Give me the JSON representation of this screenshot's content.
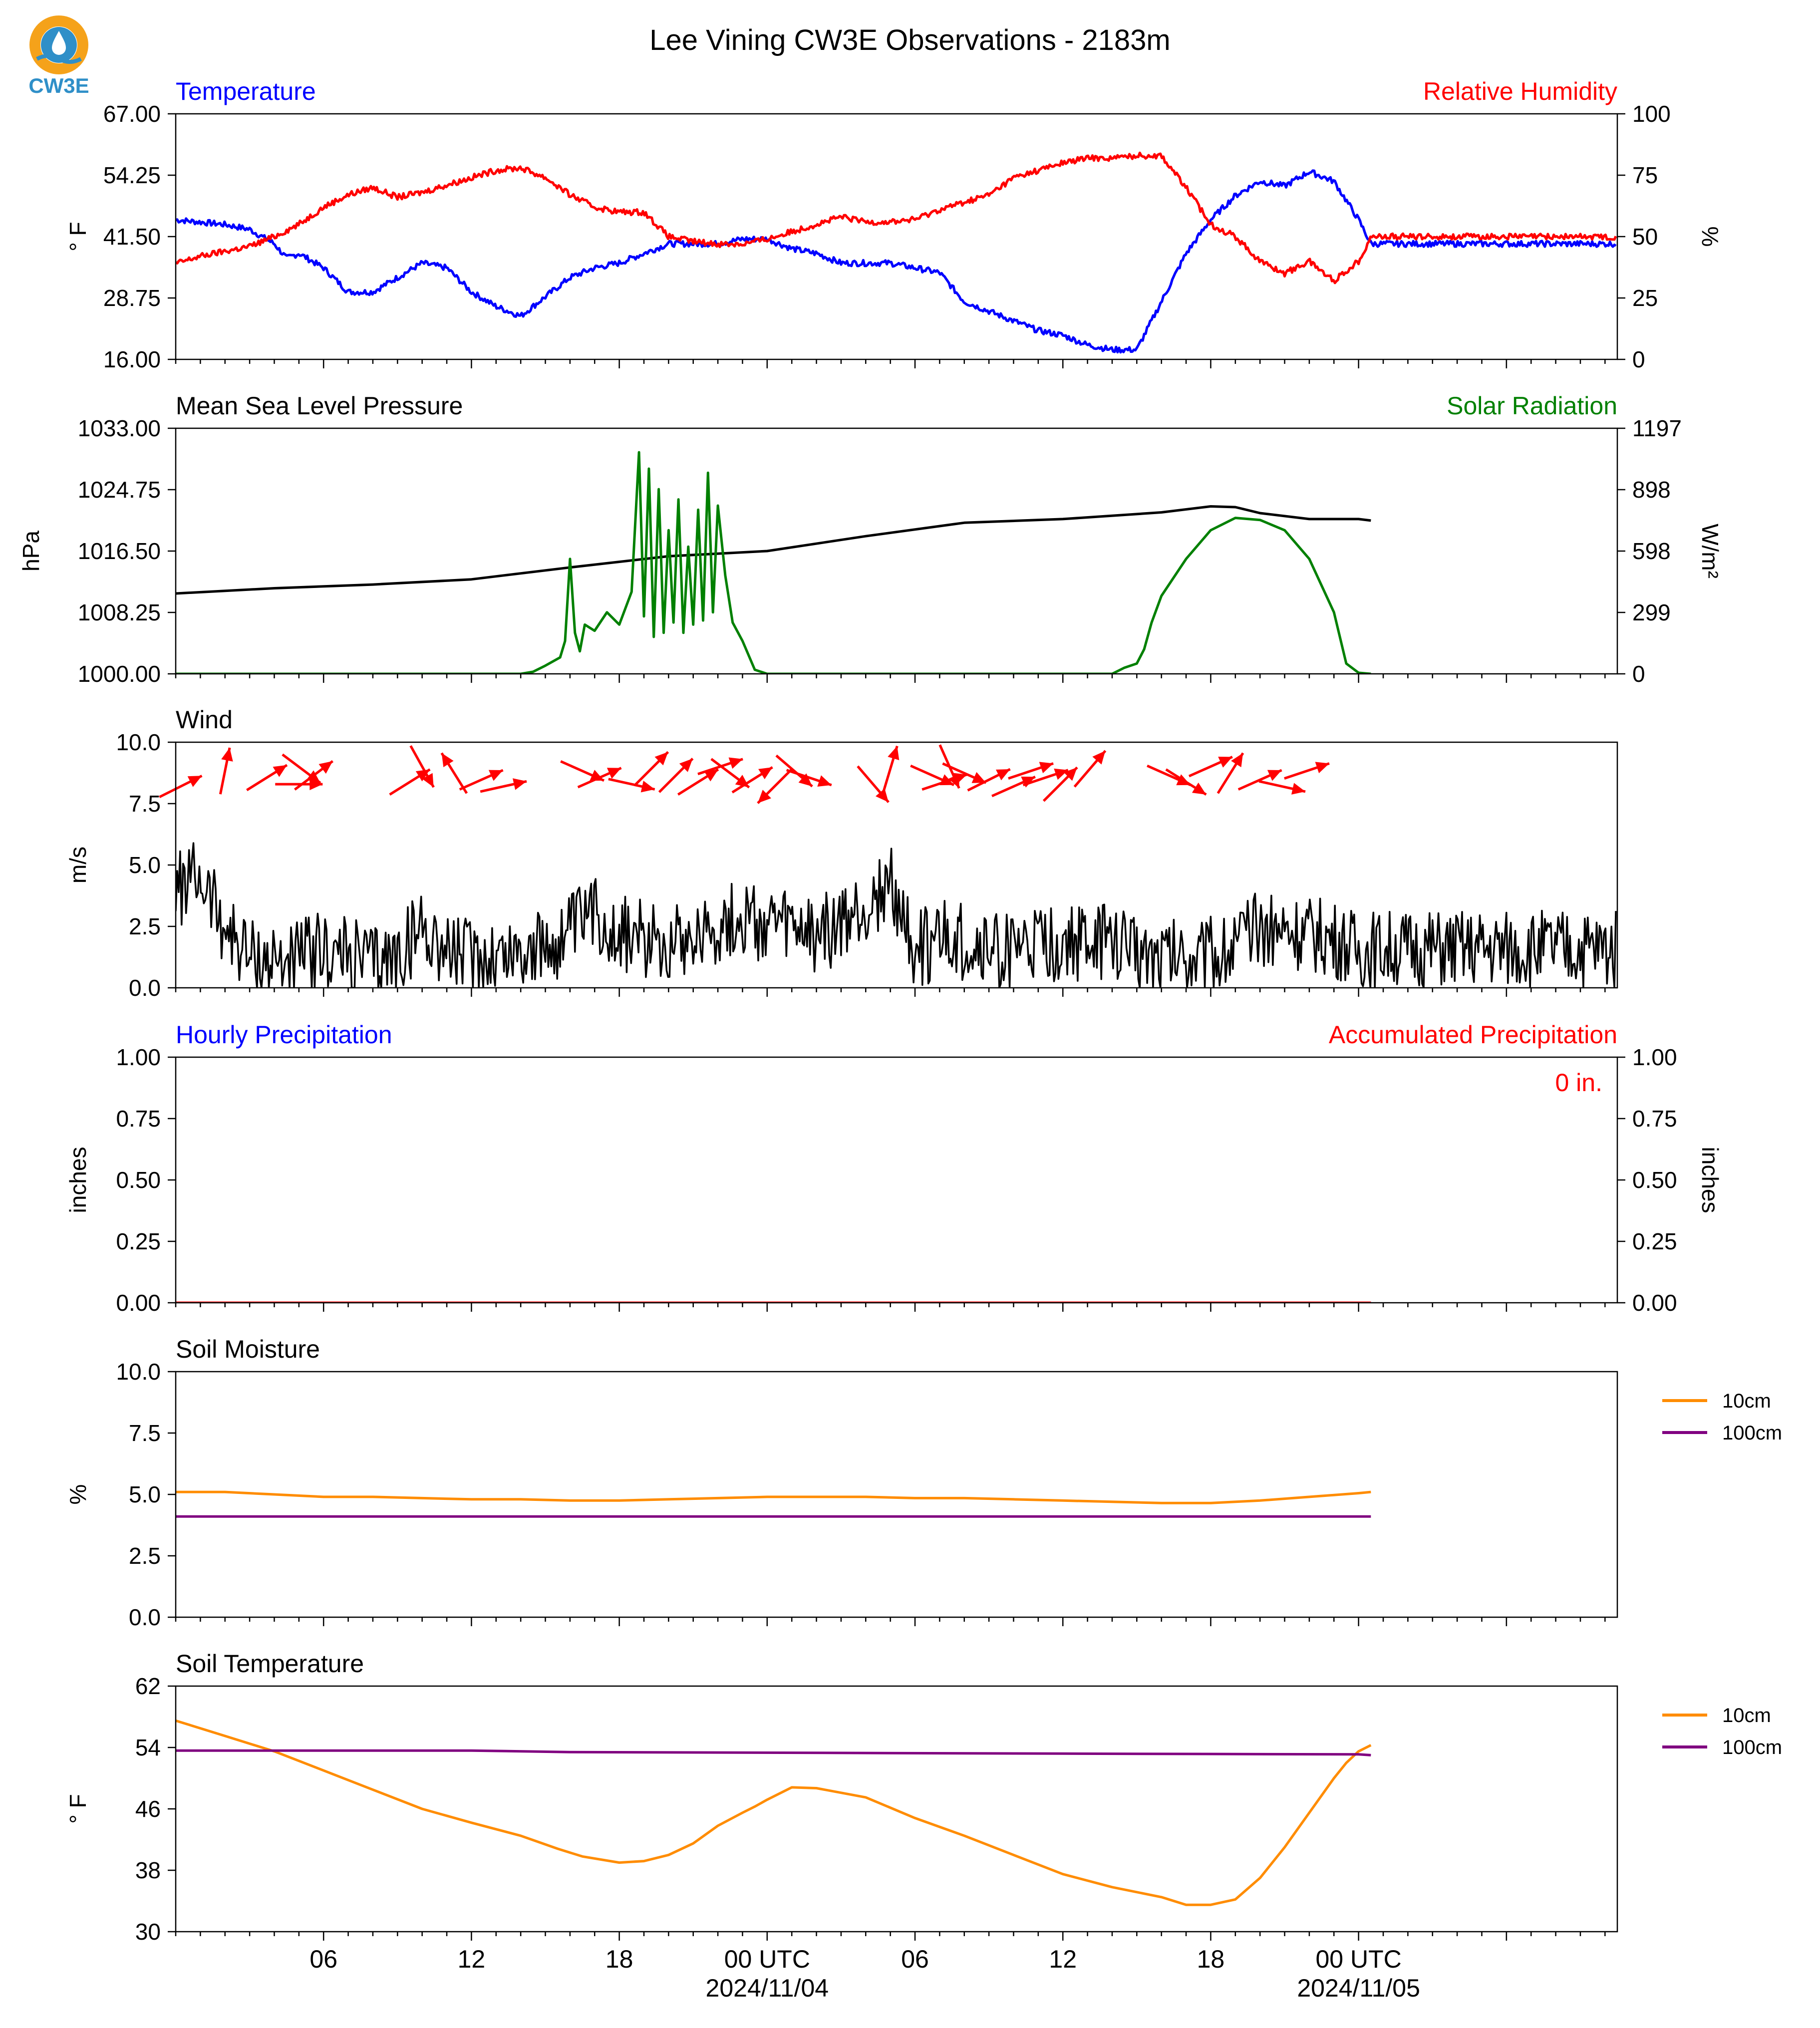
{
  "title": "Lee Vining CW3E Observations - 2183m",
  "logo": {
    "text": "CW3E",
    "colors": {
      "ring": "#f5a21a",
      "drop": "#2f8fc8",
      "text": "#2f8fc8"
    }
  },
  "x_axis": {
    "range_hours": [
      0,
      58.5
    ],
    "ticks": [
      {
        "hour": 6,
        "label": "06"
      },
      {
        "hour": 12,
        "label": "12"
      },
      {
        "hour": 18,
        "label": "18"
      },
      {
        "hour": 24,
        "label": "00 UTC",
        "sublabel": "2024/11/04"
      },
      {
        "hour": 30,
        "label": "06"
      },
      {
        "hour": 36,
        "label": "12"
      },
      {
        "hour": 42,
        "label": "18"
      },
      {
        "hour": 48,
        "label": "00 UTC",
        "sublabel": "2024/11/05"
      }
    ]
  },
  "chart_data": [
    {
      "type": "line",
      "panel": "temperature-rh",
      "title_left": "Temperature",
      "title_right": "Relative Humidity",
      "ylabel_left": "° F",
      "ylabel_right": "%",
      "ylim_left": [
        16,
        67
      ],
      "ylim_right": [
        0,
        100
      ],
      "yticks_left": [
        "16.00",
        "28.75",
        "41.50",
        "54.25",
        "67.00"
      ],
      "yticks_right": [
        "0",
        "25",
        "50",
        "75",
        "100"
      ],
      "series": [
        {
          "axis": "left",
          "color": "#0000ff",
          "x": [
            0,
            1,
            2,
            3,
            4,
            4.5,
            5,
            6,
            7,
            8,
            9,
            10,
            11,
            12,
            13,
            14,
            15,
            16,
            17,
            18,
            19,
            20,
            21,
            22,
            23,
            24,
            25,
            26,
            27,
            28,
            29,
            30,
            31,
            32,
            33,
            34,
            35,
            36,
            37,
            38,
            39,
            40,
            41,
            42,
            43,
            44,
            45,
            46,
            47,
            48,
            48.5
          ],
          "y": [
            45,
            44.5,
            44,
            43,
            40,
            37,
            38,
            35,
            30,
            30,
            33,
            36,
            35,
            30,
            27,
            25,
            29,
            33,
            35,
            36,
            38,
            40,
            40,
            40,
            41,
            41,
            39,
            38,
            36,
            36,
            36,
            35,
            34,
            28,
            26,
            24,
            22,
            21,
            19,
            18,
            18,
            28,
            38,
            45,
            50,
            53,
            52,
            55,
            53,
            45,
            40
          ]
        },
        {
          "axis": "right",
          "color": "#ff0000",
          "x": [
            0,
            1,
            2,
            3,
            4,
            5,
            6,
            7,
            8,
            9,
            10,
            11,
            12,
            13,
            14,
            15,
            16,
            17,
            18,
            19,
            20,
            21,
            22,
            23,
            24,
            25,
            26,
            27,
            28,
            29,
            30,
            31,
            32,
            33,
            34,
            35,
            36,
            37,
            38,
            39,
            40,
            41,
            42,
            43,
            44,
            45,
            46,
            47,
            48,
            48.5
          ],
          "y": [
            39,
            42,
            44,
            46,
            50,
            55,
            62,
            67,
            70,
            66,
            68,
            71,
            74,
            77,
            78,
            74,
            67,
            62,
            60,
            60,
            50,
            48,
            47,
            47,
            49,
            52,
            55,
            58,
            56,
            56,
            57,
            61,
            64,
            67,
            74,
            77,
            80,
            82,
            82,
            83,
            83,
            70,
            55,
            50,
            40,
            35,
            40,
            32,
            40,
            50
          ]
        }
      ]
    },
    {
      "type": "line",
      "panel": "pressure-solar",
      "title_left": "Mean Sea Level Pressure",
      "title_right": "Solar Radiation",
      "ylabel_left": "hPa",
      "ylabel_right": "W/m²",
      "ylim_left": [
        1000,
        1033
      ],
      "ylim_right": [
        0,
        1197
      ],
      "yticks_left": [
        "1000.00",
        "1008.25",
        "1016.50",
        "1024.75",
        "1033.00"
      ],
      "yticks_right": [
        "0",
        "299",
        "598",
        "898",
        "1197"
      ],
      "series": [
        {
          "axis": "left",
          "color": "#000000",
          "x": [
            0,
            4,
            8,
            12,
            16,
            20,
            24,
            28,
            32,
            36,
            40,
            42,
            43,
            44,
            46,
            48,
            48.5
          ],
          "y": [
            1010.8,
            1011.5,
            1012,
            1012.7,
            1014.3,
            1015.8,
            1016.5,
            1018.5,
            1020.3,
            1020.8,
            1021.7,
            1022.5,
            1022.4,
            1021.6,
            1020.8,
            1020.8,
            1020.6
          ]
        },
        {
          "axis": "right",
          "color": "#008000",
          "x": [
            0,
            13,
            14,
            14.5,
            15,
            15.3,
            15.6,
            15.8,
            16,
            16.2,
            16.4,
            16.6,
            17,
            17.5,
            18,
            18.5,
            18.8,
            19,
            19.2,
            19.4,
            19.6,
            19.8,
            20,
            20.2,
            20.4,
            20.6,
            20.8,
            21,
            21.2,
            21.4,
            21.6,
            21.8,
            22,
            22.3,
            22.6,
            23,
            23.5,
            24,
            25,
            38,
            38.5,
            39,
            39.3,
            39.6,
            40,
            41,
            42,
            43,
            44,
            45,
            46,
            47,
            47.5,
            48,
            48.5
          ],
          "y": [
            0,
            0,
            0,
            10,
            40,
            60,
            80,
            160,
            560,
            200,
            110,
            240,
            210,
            300,
            240,
            400,
            1080,
            280,
            1000,
            180,
            900,
            200,
            700,
            250,
            850,
            200,
            620,
            240,
            800,
            260,
            980,
            300,
            820,
            480,
            250,
            160,
            20,
            0,
            0,
            0,
            30,
            50,
            120,
            250,
            380,
            560,
            700,
            760,
            750,
            700,
            560,
            300,
            50,
            5,
            0
          ]
        }
      ]
    },
    {
      "type": "line",
      "panel": "wind",
      "title_left": "Wind",
      "ylabel_left": "m/s",
      "ylim_left": [
        0,
        10
      ],
      "yticks_left": [
        "0.0",
        "2.5",
        "5.0",
        "7.5",
        "10.0"
      ],
      "series": [
        {
          "axis": "left",
          "color": "#000000",
          "x": [
            0,
            1,
            2,
            3,
            4,
            6,
            8,
            9,
            10,
            11,
            12,
            13,
            14,
            15,
            16,
            17,
            18,
            19,
            20,
            21,
            22,
            23,
            24,
            25,
            26,
            27,
            28,
            29,
            30,
            31,
            32,
            33,
            34,
            35,
            36,
            37,
            38,
            39,
            40,
            41,
            42,
            43,
            44,
            45,
            46,
            47,
            48,
            48.5
          ],
          "y": [
            4,
            4.5,
            2.5,
            1.2,
            1,
            1.5,
            1,
            1.2,
            2.5,
            1.5,
            1.2,
            1.3,
            1.5,
            1.5,
            2.2,
            3,
            2.2,
            2,
            2,
            2.2,
            2.5,
            2.8,
            2.5,
            2.3,
            2.2,
            2.5,
            3.2,
            4.2,
            1.5,
            2,
            1.8,
            1.5,
            1.5,
            1.6,
            1.7,
            1.8,
            1.8,
            1.5,
            1.4,
            1.4,
            1.3,
            1.7,
            2.5,
            2.4,
            2.2,
            2,
            1.5,
            1.6
          ]
        }
      ],
      "arrows": [
        {
          "x": 0.2,
          "u": 0.6,
          "v": 0.3
        },
        {
          "x": 2.0,
          "u": 0.2,
          "v": 1.0
        },
        {
          "x": 3.7,
          "u": 0.8,
          "v": 0.5
        },
        {
          "x": 5.0,
          "u": 1.0,
          "v": 0.0
        },
        {
          "x": 5.1,
          "u": 0.8,
          "v": -0.6
        },
        {
          "x": 5.6,
          "u": 0.8,
          "v": 0.6
        },
        {
          "x": 9.5,
          "u": 0.8,
          "v": 0.5
        },
        {
          "x": 10.0,
          "u": 0.5,
          "v": -0.9
        },
        {
          "x": 11.3,
          "u": -0.5,
          "v": 0.8
        },
        {
          "x": 12.4,
          "u": 0.9,
          "v": 0.4
        },
        {
          "x": 13.3,
          "u": 0.9,
          "v": 0.2
        },
        {
          "x": 16.5,
          "u": 0.9,
          "v": -0.4
        },
        {
          "x": 17.2,
          "u": 0.9,
          "v": 0.4
        },
        {
          "x": 18.5,
          "u": 0.9,
          "v": -0.2
        },
        {
          "x": 19.3,
          "u": 0.7,
          "v": 0.7
        },
        {
          "x": 20.3,
          "u": 0.7,
          "v": 0.7
        },
        {
          "x": 21.2,
          "u": 0.8,
          "v": 0.5
        },
        {
          "x": 22.1,
          "u": 0.9,
          "v": 0.3
        },
        {
          "x": 22.5,
          "u": 0.8,
          "v": -0.6
        },
        {
          "x": 23.4,
          "u": 0.8,
          "v": 0.5
        },
        {
          "x": 24.3,
          "u": -0.7,
          "v": -0.7
        },
        {
          "x": 25.1,
          "u": 0.7,
          "v": -0.6
        },
        {
          "x": 25.7,
          "u": 0.9,
          "v": -0.3
        },
        {
          "x": 28.3,
          "u": 0.6,
          "v": -0.7
        },
        {
          "x": 29.0,
          "u": 0.3,
          "v": 1.0
        },
        {
          "x": 30.7,
          "u": 0.9,
          "v": -0.4
        },
        {
          "x": 31.2,
          "u": 0.9,
          "v": 0.3
        },
        {
          "x": 31.4,
          "u": 0.4,
          "v": -0.9
        },
        {
          "x": 32.0,
          "u": 0.9,
          "v": -0.4
        },
        {
          "x": 33.0,
          "u": 0.8,
          "v": 0.4
        },
        {
          "x": 34.0,
          "u": 0.9,
          "v": 0.4
        },
        {
          "x": 34.7,
          "u": 0.9,
          "v": 0.3
        },
        {
          "x": 35.3,
          "u": 0.9,
          "v": 0.3
        },
        {
          "x": 35.9,
          "u": 0.7,
          "v": 0.7
        },
        {
          "x": 37.1,
          "u": 0.6,
          "v": 0.7
        },
        {
          "x": 40.3,
          "u": 0.9,
          "v": -0.4
        },
        {
          "x": 41.0,
          "u": 0.8,
          "v": -0.5
        },
        {
          "x": 42.0,
          "u": 0.9,
          "v": 0.4
        },
        {
          "x": 42.8,
          "u": 0.5,
          "v": 0.8
        },
        {
          "x": 44.0,
          "u": 0.9,
          "v": 0.4
        },
        {
          "x": 44.9,
          "u": 0.9,
          "v": -0.2
        },
        {
          "x": 45.9,
          "u": 0.9,
          "v": 0.3
        }
      ]
    },
    {
      "type": "line",
      "panel": "precipitation",
      "title_left": "Hourly Precipitation",
      "title_right": "Accumulated Precipitation",
      "annotation": "0 in.",
      "ylabel_left": "inches",
      "ylabel_right": "inches",
      "ylim_left": [
        0,
        1
      ],
      "ylim_right": [
        0,
        1
      ],
      "yticks_left": [
        "0.00",
        "0.25",
        "0.50",
        "0.75",
        "1.00"
      ],
      "yticks_right": [
        "0.00",
        "0.25",
        "0.50",
        "0.75",
        "1.00"
      ],
      "series": [
        {
          "axis": "left",
          "color": "#0000ff",
          "x": [
            0,
            48.5
          ],
          "y": [
            0,
            0
          ]
        },
        {
          "axis": "right",
          "color": "#ff0000",
          "x": [
            0,
            48.5
          ],
          "y": [
            0,
            0
          ]
        }
      ]
    },
    {
      "type": "line",
      "panel": "soil-moisture",
      "title_left": "Soil Moisture",
      "ylabel_left": "%",
      "ylim_left": [
        0,
        10
      ],
      "yticks_left": [
        "0.0",
        "2.5",
        "5.0",
        "7.5",
        "10.0"
      ],
      "legend_placement": "right",
      "series": [
        {
          "name": "10cm",
          "color": "#ff8c00",
          "x": [
            0,
            2,
            4,
            6,
            8,
            10,
            12,
            14,
            16,
            18,
            20,
            22,
            24,
            26,
            28,
            30,
            32,
            34,
            36,
            38,
            40,
            42,
            44,
            46,
            48,
            48.5
          ],
          "y": [
            5.1,
            5.1,
            5.0,
            4.9,
            4.9,
            4.85,
            4.8,
            4.8,
            4.75,
            4.75,
            4.8,
            4.85,
            4.9,
            4.9,
            4.9,
            4.85,
            4.85,
            4.8,
            4.75,
            4.7,
            4.65,
            4.65,
            4.75,
            4.9,
            5.05,
            5.1
          ]
        },
        {
          "name": "100cm",
          "color": "#800080",
          "x": [
            0,
            48.5
          ],
          "y": [
            4.1,
            4.1
          ]
        }
      ]
    },
    {
      "type": "line",
      "panel": "soil-temperature",
      "title_left": "Soil Temperature",
      "ylabel_left": "° F",
      "ylim_left": [
        30,
        62
      ],
      "yticks_left": [
        "30",
        "38",
        "46",
        "54",
        "62"
      ],
      "legend_placement": "right",
      "series": [
        {
          "name": "10cm",
          "color": "#ff8c00",
          "x": [
            0,
            2,
            4,
            6,
            8,
            10,
            12,
            14,
            15.5,
            16.5,
            18,
            19,
            20,
            21,
            22,
            23,
            23.5,
            24,
            25,
            26,
            28,
            30,
            32,
            34,
            36,
            38,
            40,
            41,
            42,
            43,
            44,
            45,
            46,
            47,
            47.5,
            48,
            48.5
          ],
          "y": [
            57.5,
            55.5,
            53.5,
            51,
            48.5,
            46,
            44.2,
            42.5,
            40.8,
            39.8,
            39,
            39.2,
            40,
            41.5,
            43.8,
            45.5,
            46.3,
            47.2,
            48.8,
            48.7,
            47.5,
            44.8,
            42.5,
            40,
            37.5,
            35.8,
            34.5,
            33.5,
            33.5,
            34.2,
            37,
            41,
            45.5,
            50,
            52,
            53.5,
            54.3
          ]
        },
        {
          "name": "100cm",
          "color": "#800080",
          "x": [
            0,
            12,
            16,
            36,
            48,
            48.5
          ],
          "y": [
            53.6,
            53.6,
            53.4,
            53.2,
            53.1,
            53.0
          ]
        }
      ]
    }
  ]
}
